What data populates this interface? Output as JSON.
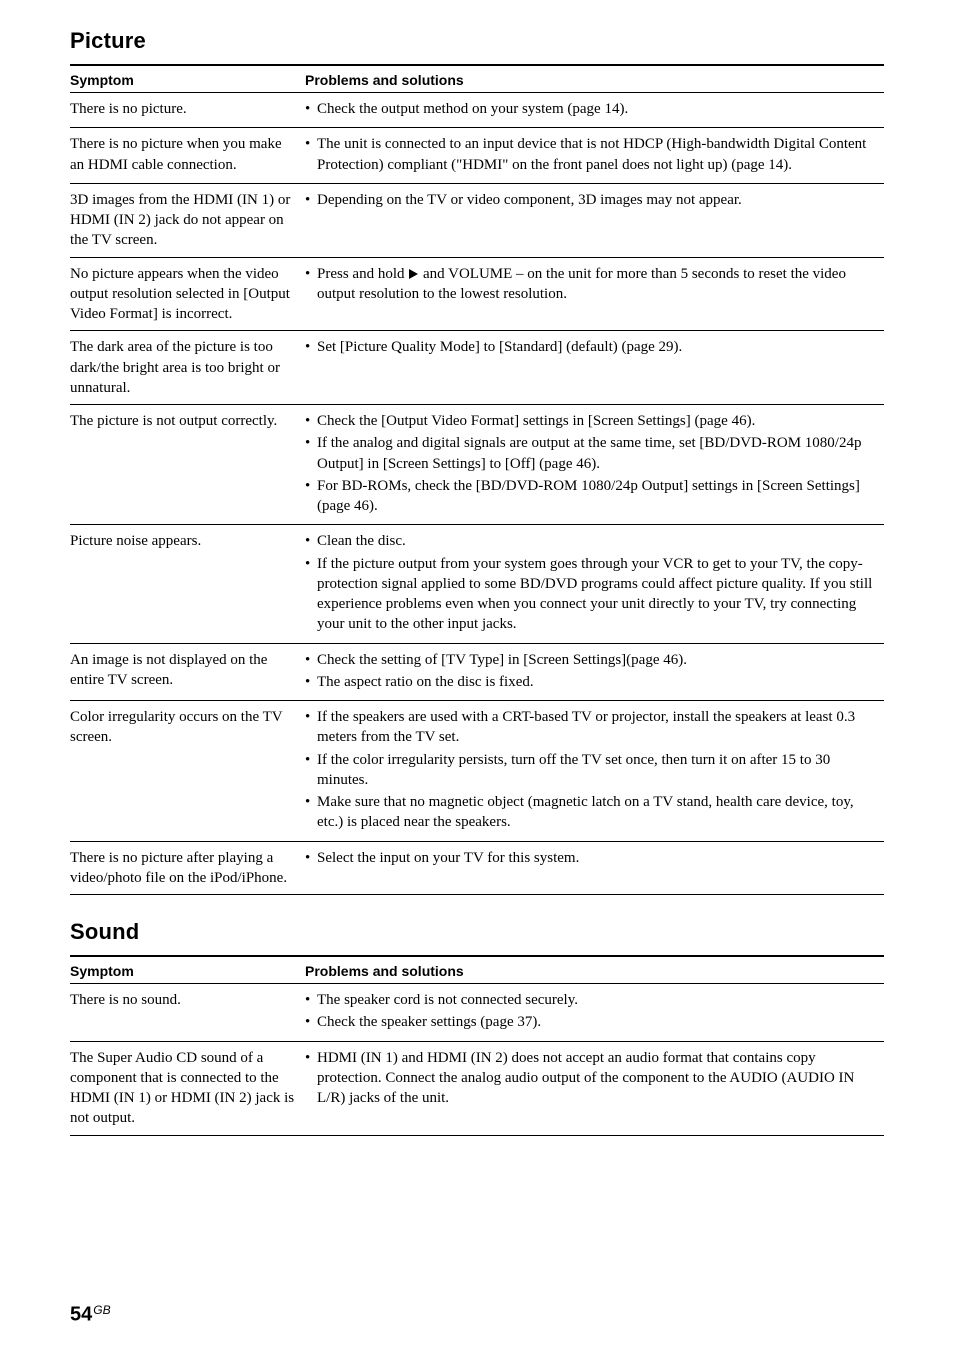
{
  "picture": {
    "heading": "Picture",
    "header_symptom": "Symptom",
    "header_problems": "Problems and solutions",
    "rows": [
      {
        "symptom": "There is no picture.",
        "bullets": [
          {
            "text": "Check the output method on your system (page 14)."
          }
        ]
      },
      {
        "symptom": "There is no picture when you make an HDMI cable connection.",
        "bullets": [
          {
            "text": "The unit is connected to an input device that is not HDCP (High-bandwidth Digital Content Protection) compliant (\"HDMI\" on the front panel does not light up) (page 14)."
          }
        ]
      },
      {
        "symptom": "3D images from the HDMI (IN 1) or HDMI (IN 2) jack do not appear on the TV screen.",
        "bullets": [
          {
            "text": "Depending on the TV or video component, 3D images may not appear."
          }
        ]
      },
      {
        "symptom": "No picture appears when the video output resolution selected in [Output Video Format] is incorrect.",
        "bullets": [
          {
            "pre": "Press and hold ",
            "play": true,
            "post": " and VOLUME – on the unit for more than 5 seconds to reset the video output resolution to the lowest resolution."
          }
        ]
      },
      {
        "symptom": "The dark area of the picture is too dark/the bright area is too bright or unnatural.",
        "bullets": [
          {
            "text": "Set [Picture Quality Mode] to [Standard] (default) (page 29)."
          }
        ]
      },
      {
        "symptom": "The picture is not output correctly.",
        "bullets": [
          {
            "text": "Check the [Output Video Format] settings in [Screen Settings] (page 46)."
          },
          {
            "text": "If the analog and digital signals are output at the same time, set [BD/DVD-ROM 1080/24p Output] in [Screen Settings] to [Off] (page 46)."
          },
          {
            "text": "For BD-ROMs, check the [BD/DVD-ROM 1080/24p Output] settings in [Screen Settings] (page 46)."
          }
        ]
      },
      {
        "symptom": "Picture noise appears.",
        "bullets": [
          {
            "text": "Clean the disc."
          },
          {
            "text": "If the picture output from your system goes through your VCR to get to your TV, the copy-protection signal applied to some BD/DVD programs could affect picture quality. If you still experience problems even when you connect your unit directly to your TV, try connecting your unit to the other input jacks."
          }
        ]
      },
      {
        "symptom": "An image is not displayed on the entire TV screen.",
        "bullets": [
          {
            "text": "Check the setting of [TV Type] in [Screen Settings](page 46)."
          },
          {
            "text": "The aspect ratio on the disc is fixed."
          }
        ]
      },
      {
        "symptom": "Color irregularity occurs on the TV screen.",
        "bullets": [
          {
            "text": "If the speakers are used with a CRT-based TV or projector, install the speakers at least 0.3 meters from the TV set."
          },
          {
            "text": "If the color irregularity persists, turn off the TV set once, then turn it on after 15 to 30 minutes."
          },
          {
            "text": "Make sure that no magnetic object (magnetic latch on a TV stand, health care device, toy, etc.) is placed near the speakers."
          }
        ]
      },
      {
        "symptom": "There is no picture after playing a video/photo file on the iPod/iPhone.",
        "bullets": [
          {
            "text": "Select the input on your TV for this system."
          }
        ]
      }
    ]
  },
  "sound": {
    "heading": "Sound",
    "header_symptom": "Symptom",
    "header_problems": "Problems and solutions",
    "rows": [
      {
        "symptom": "There is no sound.",
        "bullets": [
          {
            "text": "The speaker cord is not connected securely."
          },
          {
            "text": "Check the speaker settings (page 37)."
          }
        ]
      },
      {
        "symptom": "The Super Audio CD sound of a component that is connected to the HDMI (IN 1) or HDMI (IN 2) jack is not output.",
        "bullets": [
          {
            "text": "HDMI (IN 1) and HDMI (IN 2) does not accept an audio format that contains copy protection. Connect the analog audio output of the component to the AUDIO (AUDIO IN L/R) jacks of the unit."
          }
        ]
      }
    ]
  },
  "footer": {
    "page_number": "54",
    "suffix": "GB"
  }
}
